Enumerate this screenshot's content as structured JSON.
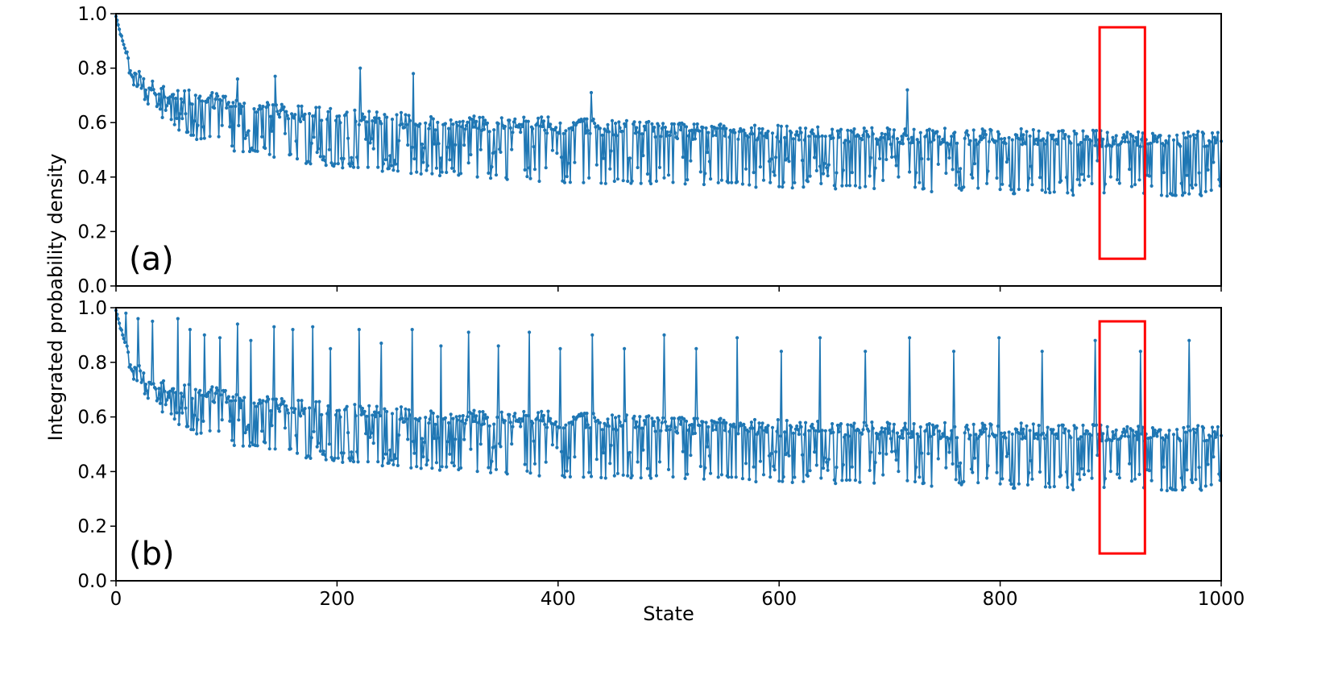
{
  "figure": {
    "xlabel": "State",
    "ylabel": "Integrated probability density"
  },
  "colors": {
    "series": "#1f77b4",
    "highlight_box": "#ff0000",
    "axes": "#000000"
  },
  "chart_data": [
    {
      "type": "line",
      "panel_label": "(a)",
      "x_range": [
        0,
        1000
      ],
      "ylim": [
        0,
        1.0
      ],
      "xticks": [
        0,
        200,
        400,
        600,
        800,
        1000
      ],
      "yticks": [
        "0.0",
        "0.2",
        "0.4",
        "0.6",
        "0.8",
        "1.0"
      ],
      "markers": true,
      "series": [
        {
          "decay_curve": {
            "x": [
              0,
              5,
              10,
              20,
              40,
              60,
              100,
              150,
              200,
              300,
              400,
              500,
              600,
              700,
              800,
              900,
              1000
            ],
            "upper": [
              0.99,
              0.92,
              0.86,
              0.79,
              0.75,
              0.73,
              0.7,
              0.67,
              0.65,
              0.63,
              0.62,
              0.6,
              0.59,
              0.58,
              0.58,
              0.57,
              0.57
            ],
            "lower": [
              0.99,
              0.88,
              0.8,
              0.72,
              0.64,
              0.57,
              0.52,
              0.48,
              0.45,
              0.42,
              0.4,
              0.39,
              0.38,
              0.37,
              0.36,
              0.35,
              0.35
            ]
          },
          "spikes": [
            {
              "x": 110,
              "y": 0.76
            },
            {
              "x": 144,
              "y": 0.77
            },
            {
              "x": 221,
              "y": 0.8
            },
            {
              "x": 269,
              "y": 0.78
            },
            {
              "x": 430,
              "y": 0.71
            },
            {
              "x": 716,
              "y": 0.72
            }
          ]
        }
      ]
    },
    {
      "type": "line",
      "panel_label": "(b)",
      "x_range": [
        0,
        1000
      ],
      "ylim": [
        0,
        1.0
      ],
      "xticks": [
        0,
        200,
        400,
        600,
        800,
        1000
      ],
      "xtick_labels": [
        "0",
        "200",
        "400",
        "600",
        "800",
        "1000"
      ],
      "yticks": [
        "0.0",
        "0.2",
        "0.4",
        "0.6",
        "0.8",
        "1.0"
      ],
      "markers": true,
      "series": [
        {
          "decay_curve": {
            "x": [
              0,
              5,
              10,
              20,
              40,
              60,
              100,
              150,
              200,
              300,
              400,
              500,
              600,
              700,
              800,
              900,
              1000
            ],
            "upper": [
              0.99,
              0.92,
              0.86,
              0.79,
              0.75,
              0.73,
              0.7,
              0.67,
              0.65,
              0.63,
              0.62,
              0.6,
              0.59,
              0.58,
              0.58,
              0.57,
              0.57
            ],
            "lower": [
              0.99,
              0.88,
              0.8,
              0.72,
              0.64,
              0.57,
              0.52,
              0.48,
              0.45,
              0.42,
              0.4,
              0.39,
              0.38,
              0.37,
              0.36,
              0.35,
              0.35
            ]
          },
          "spikes": [
            {
              "x": 9,
              "y": 0.98
            },
            {
              "x": 20,
              "y": 0.96
            },
            {
              "x": 33,
              "y": 0.95
            },
            {
              "x": 56,
              "y": 0.96
            },
            {
              "x": 67,
              "y": 0.92
            },
            {
              "x": 80,
              "y": 0.9
            },
            {
              "x": 94,
              "y": 0.89
            },
            {
              "x": 110,
              "y": 0.94
            },
            {
              "x": 122,
              "y": 0.88
            },
            {
              "x": 143,
              "y": 0.93
            },
            {
              "x": 160,
              "y": 0.92
            },
            {
              "x": 178,
              "y": 0.93
            },
            {
              "x": 194,
              "y": 0.85
            },
            {
              "x": 220,
              "y": 0.92
            },
            {
              "x": 240,
              "y": 0.87
            },
            {
              "x": 268,
              "y": 0.92
            },
            {
              "x": 294,
              "y": 0.86
            },
            {
              "x": 319,
              "y": 0.91
            },
            {
              "x": 346,
              "y": 0.86
            },
            {
              "x": 374,
              "y": 0.91
            },
            {
              "x": 402,
              "y": 0.85
            },
            {
              "x": 431,
              "y": 0.9
            },
            {
              "x": 460,
              "y": 0.85
            },
            {
              "x": 496,
              "y": 0.9
            },
            {
              "x": 525,
              "y": 0.85
            },
            {
              "x": 562,
              "y": 0.89
            },
            {
              "x": 602,
              "y": 0.84
            },
            {
              "x": 637,
              "y": 0.89
            },
            {
              "x": 678,
              "y": 0.84
            },
            {
              "x": 718,
              "y": 0.89
            },
            {
              "x": 758,
              "y": 0.84
            },
            {
              "x": 799,
              "y": 0.89
            },
            {
              "x": 838,
              "y": 0.84
            },
            {
              "x": 886,
              "y": 0.88
            },
            {
              "x": 927,
              "y": 0.84
            },
            {
              "x": 971,
              "y": 0.88
            }
          ]
        }
      ]
    }
  ],
  "highlight_boxes": [
    {
      "panel": 0,
      "x_range": [
        890,
        931
      ],
      "y_range": [
        0.1,
        0.95
      ]
    },
    {
      "panel": 1,
      "x_range": [
        890,
        931
      ],
      "y_range": [
        0.1,
        0.95
      ]
    }
  ]
}
